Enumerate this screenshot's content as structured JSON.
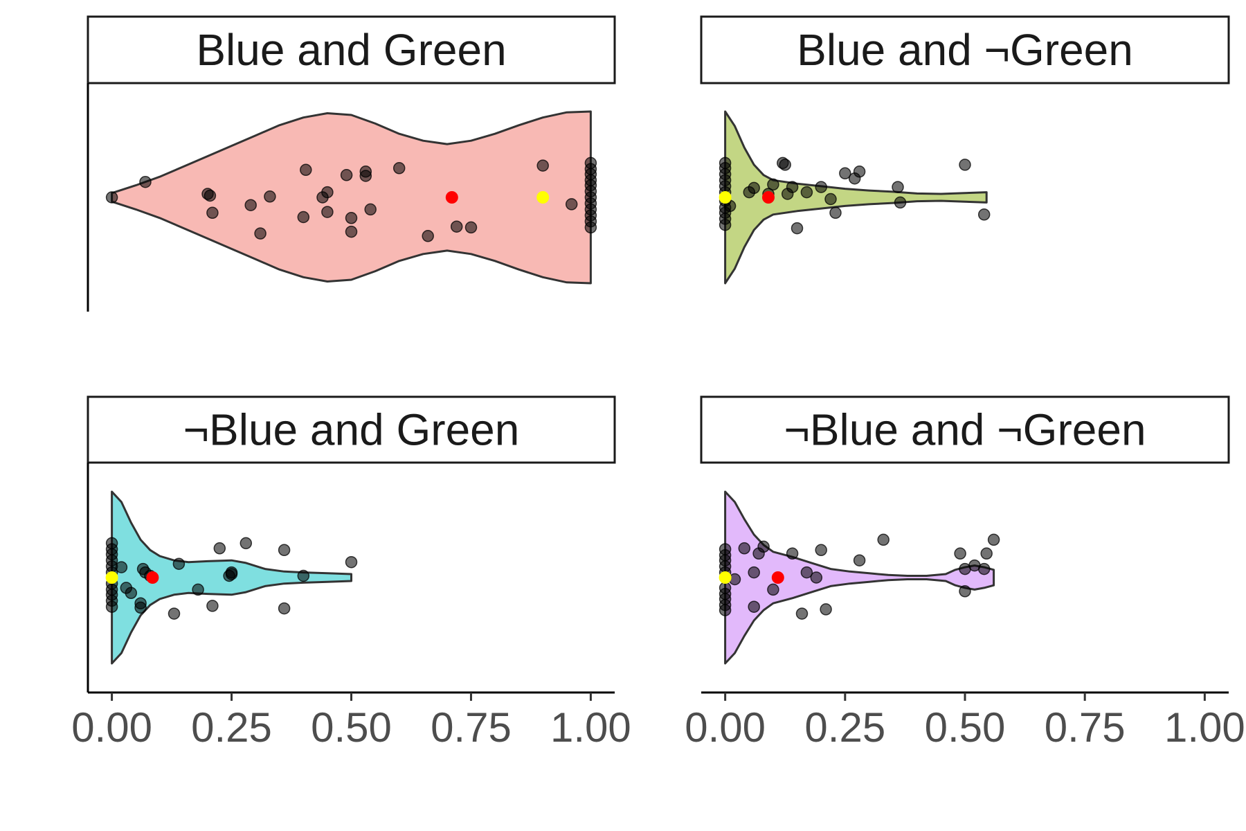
{
  "chart_data": {
    "type": "violin",
    "title": "",
    "xlabel": "",
    "ylabel": "",
    "xlim": [
      -0.05,
      1.05
    ],
    "x_ticks": [
      {
        "value": 0,
        "label": "0.00"
      },
      {
        "value": 0.25,
        "label": "0.25"
      },
      {
        "value": 0.5,
        "label": "0.50"
      },
      {
        "value": 0.75,
        "label": "0.75"
      },
      {
        "value": 1,
        "label": "1.00"
      }
    ],
    "legend": "none",
    "grid": false,
    "markers": {
      "mean_color": "#ff0000",
      "median_color": "#ffff00"
    },
    "panels": [
      {
        "title": "Blue and Green",
        "fill": "#f8b9b4",
        "mean": 0.71,
        "median": 0.9,
        "outline": [
          [
            0,
            0.05
          ],
          [
            0.05,
            0.14
          ],
          [
            0.1,
            0.24
          ],
          [
            0.15,
            0.36
          ],
          [
            0.2,
            0.48
          ],
          [
            0.25,
            0.6
          ],
          [
            0.3,
            0.72
          ],
          [
            0.35,
            0.84
          ],
          [
            0.4,
            0.93
          ],
          [
            0.45,
            0.98
          ],
          [
            0.5,
            0.96
          ],
          [
            0.55,
            0.86
          ],
          [
            0.6,
            0.74
          ],
          [
            0.65,
            0.66
          ],
          [
            0.7,
            0.62
          ],
          [
            0.75,
            0.66
          ],
          [
            0.8,
            0.74
          ],
          [
            0.85,
            0.84
          ],
          [
            0.9,
            0.93
          ],
          [
            0.95,
            0.99
          ],
          [
            1,
            1
          ]
        ],
        "points": [
          [
            0,
            0
          ],
          [
            0.07,
            0.18
          ],
          [
            0.2,
            0.04
          ],
          [
            0.205,
            0.02
          ],
          [
            0.21,
            -0.18
          ],
          [
            0.29,
            -0.09
          ],
          [
            0.31,
            -0.42
          ],
          [
            0.33,
            0.01
          ],
          [
            0.4,
            -0.23
          ],
          [
            0.405,
            0.32
          ],
          [
            0.44,
            0.0
          ],
          [
            0.45,
            0.06
          ],
          [
            0.45,
            -0.17
          ],
          [
            0.49,
            0.26
          ],
          [
            0.5,
            -0.24
          ],
          [
            0.5,
            -0.4
          ],
          [
            0.53,
            0.3
          ],
          [
            0.53,
            0.25
          ],
          [
            0.54,
            -0.14
          ],
          [
            0.6,
            0.34
          ],
          [
            0.66,
            -0.45
          ],
          [
            0.72,
            -0.34
          ],
          [
            0.75,
            -0.35
          ],
          [
            0.9,
            0.37
          ],
          [
            0.96,
            -0.08
          ],
          [
            1,
            0.4
          ],
          [
            1,
            0.33
          ],
          [
            1,
            0.27
          ],
          [
            1,
            0.2
          ],
          [
            1,
            0.14
          ],
          [
            1,
            0.07
          ],
          [
            1,
            0.0
          ],
          [
            1,
            -0.07
          ],
          [
            1,
            -0.14
          ],
          [
            1,
            -0.21
          ],
          [
            1,
            -0.28
          ],
          [
            1,
            -0.35
          ]
        ]
      },
      {
        "title": "Blue and ¬Green",
        "fill": "#c3d684",
        "mean": 0.09,
        "median": 0,
        "outline": [
          [
            0,
            1
          ],
          [
            0.02,
            0.83
          ],
          [
            0.04,
            0.58
          ],
          [
            0.06,
            0.38
          ],
          [
            0.08,
            0.26
          ],
          [
            0.1,
            0.2
          ],
          [
            0.15,
            0.16
          ],
          [
            0.2,
            0.13
          ],
          [
            0.25,
            0.1
          ],
          [
            0.3,
            0.08
          ],
          [
            0.35,
            0.065
          ],
          [
            0.4,
            0.045
          ],
          [
            0.45,
            0.04
          ],
          [
            0.5,
            0.05
          ],
          [
            0.545,
            0.06
          ]
        ],
        "points": [
          [
            0,
            0.4
          ],
          [
            0,
            0.34
          ],
          [
            0,
            0.27
          ],
          [
            0,
            0.2
          ],
          [
            0,
            0.13
          ],
          [
            0,
            0.06
          ],
          [
            0,
            -0.04
          ],
          [
            0,
            -0.12
          ],
          [
            0,
            -0.18
          ],
          [
            0,
            -0.25
          ],
          [
            0,
            -0.32
          ],
          [
            0.01,
            -0.1
          ],
          [
            0.05,
            0.06
          ],
          [
            0.06,
            0.11
          ],
          [
            0.09,
            0.04
          ],
          [
            0.1,
            0.15
          ],
          [
            0.12,
            0.4
          ],
          [
            0.125,
            0.38
          ],
          [
            0.13,
            0.04
          ],
          [
            0.14,
            0.12
          ],
          [
            0.17,
            0.06
          ],
          [
            0.2,
            0.12
          ],
          [
            0.22,
            -0.02
          ],
          [
            0.23,
            -0.18
          ],
          [
            0.25,
            0.28
          ],
          [
            0.27,
            0.22
          ],
          [
            0.28,
            0.3
          ],
          [
            0.36,
            0.12
          ],
          [
            0.365,
            -0.06
          ],
          [
            0.5,
            0.38
          ],
          [
            0.54,
            -0.2
          ],
          [
            0.15,
            -0.36
          ]
        ]
      },
      {
        "title": "¬Blue and Green",
        "fill": "#7fdfe0",
        "mean": 0.085,
        "median": 0,
        "outline": [
          [
            0,
            1
          ],
          [
            0.02,
            0.88
          ],
          [
            0.04,
            0.64
          ],
          [
            0.06,
            0.44
          ],
          [
            0.08,
            0.32
          ],
          [
            0.1,
            0.25
          ],
          [
            0.13,
            0.2
          ],
          [
            0.16,
            0.18
          ],
          [
            0.2,
            0.19
          ],
          [
            0.25,
            0.2
          ],
          [
            0.28,
            0.17
          ],
          [
            0.32,
            0.1
          ],
          [
            0.36,
            0.07
          ],
          [
            0.4,
            0.06
          ],
          [
            0.45,
            0.05
          ],
          [
            0.5,
            0.04
          ]
        ],
        "points": [
          [
            0,
            0.4
          ],
          [
            0,
            0.33
          ],
          [
            0,
            0.27
          ],
          [
            0,
            0.2
          ],
          [
            0,
            0.13
          ],
          [
            0,
            0.06
          ],
          [
            0,
            -0.07
          ],
          [
            0,
            -0.14
          ],
          [
            0,
            -0.2
          ],
          [
            0,
            -0.27
          ],
          [
            0,
            -0.34
          ],
          [
            0.02,
            0.12
          ],
          [
            0.03,
            -0.12
          ],
          [
            0.04,
            -0.18
          ],
          [
            0.06,
            -0.35
          ],
          [
            0.06,
            -0.3
          ],
          [
            0.065,
            0.1
          ],
          [
            0.07,
            0.06
          ],
          [
            0.08,
            0.02
          ],
          [
            0.14,
            0.16
          ],
          [
            0.13,
            -0.42
          ],
          [
            0.18,
            -0.14
          ],
          [
            0.21,
            -0.33
          ],
          [
            0.225,
            0.34
          ],
          [
            0.245,
            0.02
          ],
          [
            0.25,
            0.06
          ],
          [
            0.25,
            0.04
          ],
          [
            0.28,
            0.4
          ],
          [
            0.36,
            0.32
          ],
          [
            0.36,
            -0.36
          ],
          [
            0.4,
            0.02
          ],
          [
            0.5,
            0.18
          ]
        ]
      },
      {
        "title": "¬Blue and ¬Green",
        "fill": "#e2b9fb",
        "mean": 0.11,
        "median": 0,
        "outline": [
          [
            0,
            1
          ],
          [
            0.02,
            0.88
          ],
          [
            0.04,
            0.68
          ],
          [
            0.06,
            0.5
          ],
          [
            0.08,
            0.38
          ],
          [
            0.1,
            0.3
          ],
          [
            0.14,
            0.24
          ],
          [
            0.18,
            0.17
          ],
          [
            0.22,
            0.1
          ],
          [
            0.26,
            0.07
          ],
          [
            0.3,
            0.05
          ],
          [
            0.34,
            0.03
          ],
          [
            0.38,
            0.02
          ],
          [
            0.42,
            0.02
          ],
          [
            0.46,
            0.04
          ],
          [
            0.48,
            0.09
          ],
          [
            0.5,
            0.12
          ],
          [
            0.52,
            0.14
          ],
          [
            0.54,
            0.12
          ],
          [
            0.56,
            0.09
          ]
        ],
        "points": [
          [
            0,
            0.33
          ],
          [
            0,
            0.26
          ],
          [
            0,
            0.2
          ],
          [
            0,
            0.13
          ],
          [
            0,
            0.06
          ],
          [
            0,
            -0.12
          ],
          [
            0,
            -0.19
          ],
          [
            0,
            -0.25
          ],
          [
            0,
            -0.32
          ],
          [
            0,
            -0.38
          ],
          [
            0.02,
            -0.02
          ],
          [
            0.04,
            0.34
          ],
          [
            0.06,
            0.06
          ],
          [
            0.06,
            -0.34
          ],
          [
            0.07,
            0.28
          ],
          [
            0.08,
            0.36
          ],
          [
            0.1,
            -0.14
          ],
          [
            0.14,
            0.28
          ],
          [
            0.16,
            -0.42
          ],
          [
            0.17,
            0.06
          ],
          [
            0.19,
            0.0
          ],
          [
            0.2,
            0.32
          ],
          [
            0.21,
            -0.37
          ],
          [
            0.28,
            0.2
          ],
          [
            0.33,
            0.44
          ],
          [
            0.49,
            0.28
          ],
          [
            0.5,
            -0.16
          ],
          [
            0.5,
            0.1
          ],
          [
            0.52,
            0.14
          ],
          [
            0.54,
            0.1
          ],
          [
            0.545,
            0.28
          ],
          [
            0.56,
            0.44
          ]
        ]
      }
    ]
  }
}
